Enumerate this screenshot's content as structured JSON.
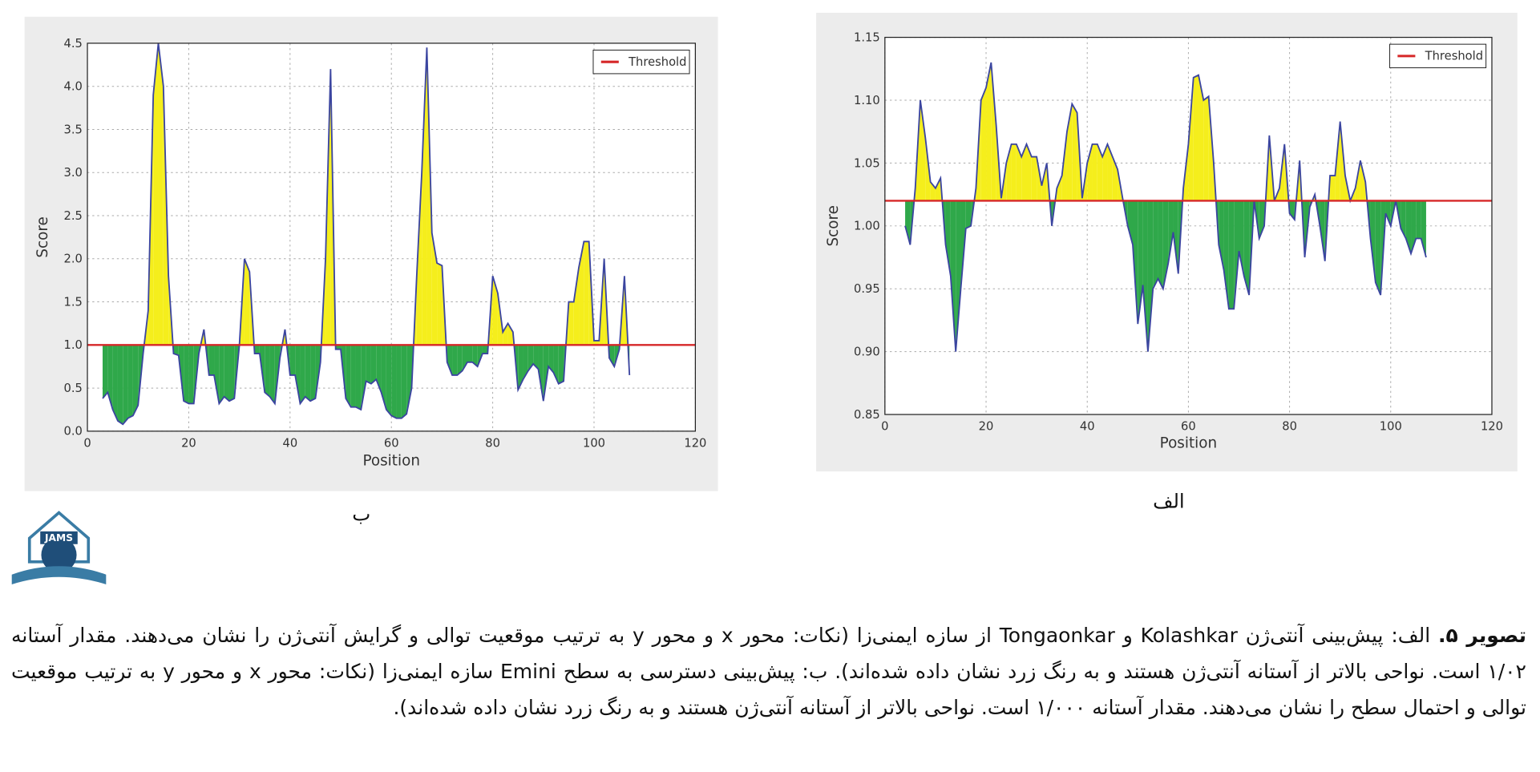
{
  "chart_data": [
    {
      "type": "threshold-area",
      "label": "ب",
      "xlabel": "Position",
      "ylabel": "Score",
      "xlim": [
        0,
        120
      ],
      "xticks": [
        0,
        20,
        40,
        60,
        80,
        100,
        120
      ],
      "ylim": [
        0,
        4.5
      ],
      "yticks": [
        {
          "value": 0,
          "label": "0.0"
        },
        0.5,
        {
          "value": 1,
          "label": "1.0"
        },
        1.5,
        {
          "value": 2,
          "label": "2.0"
        },
        2.5,
        {
          "value": 3,
          "label": "3.0"
        },
        3.5,
        {
          "value": 4,
          "label": "4.0"
        },
        4.5
      ],
      "grid": true,
      "legend": "upper right",
      "threshold": {
        "name": "Threshold",
        "value": 1.0,
        "color": "#d62728"
      },
      "line_color": "#3b45a0",
      "above_color": "#f5ee1c",
      "below_color": "#2fa84a",
      "x": [
        3,
        4,
        5,
        6,
        7,
        8,
        9,
        10,
        11,
        12,
        13,
        14,
        15,
        16,
        17,
        18,
        19,
        20,
        21,
        22,
        23,
        24,
        25,
        26,
        27,
        28,
        29,
        30,
        31,
        32,
        33,
        34,
        35,
        36,
        37,
        38,
        39,
        40,
        41,
        42,
        43,
        44,
        45,
        46,
        47,
        48,
        49,
        50,
        51,
        52,
        53,
        54,
        55,
        56,
        57,
        58,
        59,
        60,
        61,
        62,
        63,
        64,
        65,
        66,
        67,
        68,
        69,
        70,
        71,
        72,
        73,
        74,
        75,
        76,
        77,
        78,
        79,
        80,
        81,
        82,
        83,
        84,
        85,
        86,
        87,
        88,
        89,
        90,
        91,
        92,
        93,
        94,
        95,
        96,
        97,
        98,
        99,
        100,
        101,
        102,
        103,
        104,
        105,
        106,
        107
      ],
      "values": [
        0.38,
        0.45,
        0.25,
        0.12,
        0.08,
        0.15,
        0.18,
        0.3,
        0.9,
        1.4,
        3.9,
        4.5,
        4.0,
        1.8,
        0.9,
        0.88,
        0.35,
        0.32,
        0.32,
        0.9,
        1.18,
        0.65,
        0.65,
        0.32,
        0.4,
        0.35,
        0.38,
        1.0,
        2.0,
        1.85,
        0.9,
        0.9,
        0.45,
        0.4,
        0.32,
        0.85,
        1.18,
        0.65,
        0.65,
        0.32,
        0.4,
        0.35,
        0.38,
        0.8,
        2.0,
        4.2,
        0.95,
        0.95,
        0.38,
        0.28,
        0.28,
        0.25,
        0.58,
        0.55,
        0.6,
        0.45,
        0.25,
        0.18,
        0.15,
        0.15,
        0.2,
        0.5,
        1.8,
        3.0,
        4.45,
        2.3,
        1.95,
        1.92,
        0.8,
        0.65,
        0.65,
        0.7,
        0.8,
        0.8,
        0.75,
        0.9,
        0.9,
        1.8,
        1.6,
        1.15,
        1.25,
        1.15,
        0.48,
        0.6,
        0.7,
        0.78,
        0.72,
        0.35,
        0.75,
        0.68,
        0.55,
        0.58,
        1.5,
        1.5,
        1.9,
        2.2,
        2.2,
        1.05,
        1.05,
        2.0,
        0.85,
        0.75,
        0.95,
        1.8,
        0.65
      ]
    },
    {
      "type": "threshold-area",
      "label": "الف",
      "xlabel": "Position",
      "ylabel": "Score",
      "xlim": [
        0,
        120
      ],
      "xticks": [
        0,
        20,
        40,
        60,
        80,
        100,
        120
      ],
      "ylim": [
        0.85,
        1.15
      ],
      "yticks": [
        0.85,
        {
          "value": 0.9,
          "label": "0.90"
        },
        0.95,
        {
          "value": 1.0,
          "label": "1.00"
        },
        1.05,
        {
          "value": 1.1,
          "label": "1.10"
        },
        1.15
      ],
      "grid": true,
      "legend": "upper right",
      "threshold": {
        "name": "Threshold",
        "value": 1.02,
        "color": "#d62728"
      },
      "line_color": "#3b45a0",
      "above_color": "#f5ee1c",
      "below_color": "#2fa84a",
      "x": [
        4,
        5,
        6,
        7,
        8,
        9,
        10,
        11,
        12,
        13,
        14,
        15,
        16,
        17,
        18,
        19,
        20,
        21,
        22,
        23,
        24,
        25,
        26,
        27,
        28,
        29,
        30,
        31,
        32,
        33,
        34,
        35,
        36,
        37,
        38,
        39,
        40,
        41,
        42,
        43,
        44,
        45,
        46,
        47,
        48,
        49,
        50,
        51,
        52,
        53,
        54,
        55,
        56,
        57,
        58,
        59,
        60,
        61,
        62,
        63,
        64,
        65,
        66,
        67,
        68,
        69,
        70,
        71,
        72,
        73,
        74,
        75,
        76,
        77,
        78,
        79,
        80,
        81,
        82,
        83,
        84,
        85,
        86,
        87,
        88,
        89,
        90,
        91,
        92,
        93,
        94,
        95,
        96,
        97,
        98,
        99,
        100,
        101,
        102,
        103,
        104,
        105,
        106,
        107
      ],
      "values": [
        1.0,
        0.985,
        1.03,
        1.1,
        1.07,
        1.035,
        1.03,
        1.038,
        0.985,
        0.96,
        0.9,
        0.95,
        0.998,
        1.0,
        1.03,
        1.1,
        1.11,
        1.13,
        1.08,
        1.022,
        1.05,
        1.065,
        1.065,
        1.055,
        1.065,
        1.055,
        1.055,
        1.032,
        1.05,
        1.0,
        1.03,
        1.04,
        1.075,
        1.097,
        1.09,
        1.022,
        1.05,
        1.065,
        1.065,
        1.055,
        1.065,
        1.055,
        1.045,
        1.022,
        1.0,
        0.985,
        0.922,
        0.953,
        0.9,
        0.95,
        0.958,
        0.95,
        0.97,
        0.995,
        0.962,
        1.03,
        1.065,
        1.118,
        1.12,
        1.1,
        1.103,
        1.05,
        0.985,
        0.965,
        0.934,
        0.934,
        0.98,
        0.96,
        0.945,
        1.02,
        0.99,
        1.0,
        1.072,
        1.02,
        1.03,
        1.065,
        1.01,
        1.005,
        1.052,
        0.975,
        1.015,
        1.025,
        1.0,
        0.972,
        1.04,
        1.04,
        1.083,
        1.04,
        1.02,
        1.03,
        1.052,
        1.035,
        0.99,
        0.955,
        0.945,
        1.01,
        1.0,
        1.02,
        0.998,
        0.99,
        0.978,
        0.99,
        0.99,
        0.975
      ]
    }
  ],
  "logo_text": "JAMS",
  "caption": {
    "lead": "تصویر ۵.",
    "text": " الف: پیش‌بینی آنتی‌ژن Kolashkar و Tongaonkar از سازه ایمنی‌زا (نکات: محور x و محور y به ترتیب موقعیت توالی و گرایش آنتی‌ژن را نشان می‌دهند. مقدار آستانه ۱/۰۲ است. نواحی بالاتر از آستانه آنتی‌ژن هستند و به رنگ زرد نشان داده شده‌اند). ب: پیش‌بینی دسترسی به سطح Emini سازه ایمنی‌زا (نکات: محور x و محور y به ترتیب موقعیت توالی و احتمال سطح را نشان می‌دهند. مقدار آستانه ۱/۰۰۰ است. نواحی بالاتر از آستانه آنتی‌ژن هستند و به رنگ زرد نشان داده شده‌اند)."
  }
}
